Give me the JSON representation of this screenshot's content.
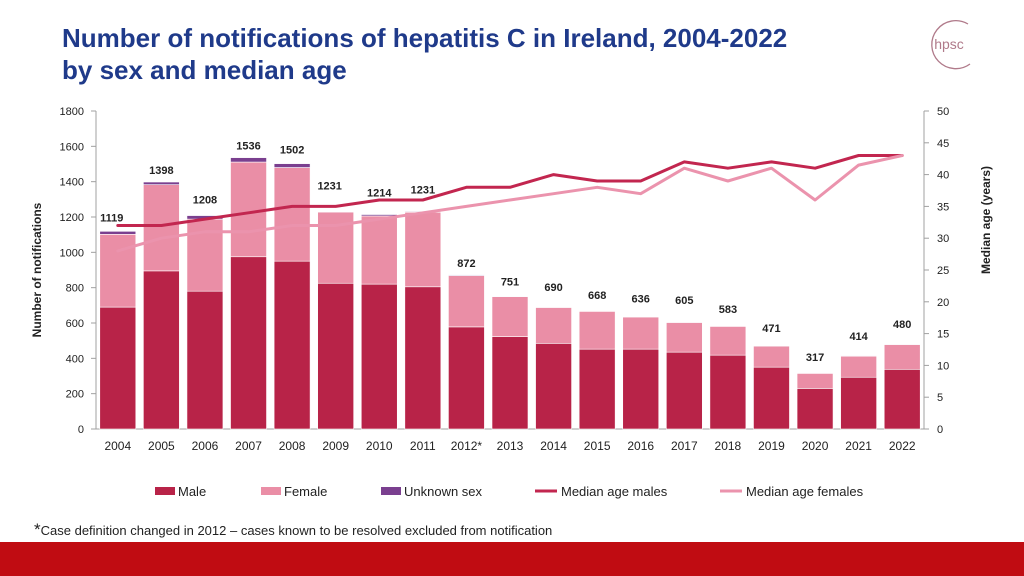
{
  "page": {
    "title_line1": "Number of notifications of hepatitis C in Ireland, 2004-2022",
    "title_line2": "by sex and median age",
    "logo_text": "hpsc",
    "footnote_star": "*",
    "footnote_text": "Case definition changed in 2012 – cases known to be resolved excluded from notification"
  },
  "colors": {
    "title": "#1f3a8a",
    "male": "#b82348",
    "female": "#ea8ea6",
    "unknown": "#7a3f8f",
    "median_male": "#c2264f",
    "median_female": "#eb93ad",
    "brand_red": "#c00c12",
    "logo": "#b07a8a"
  },
  "chart_data": {
    "type": "bar",
    "stacked": true,
    "title": "Number of notifications of hepatitis C in Ireland, 2004-2022 by sex and median age",
    "categories": [
      "2004",
      "2005",
      "2006",
      "2007",
      "2008",
      "2009",
      "2010",
      "2011",
      "2012*",
      "2013",
      "2014",
      "2015",
      "2016",
      "2017",
      "2018",
      "2019",
      "2020",
      "2021",
      "2022"
    ],
    "series": [
      {
        "name": "Male",
        "axis": "left",
        "values": [
          690,
          895,
          780,
          975,
          950,
          825,
          820,
          805,
          578,
          523,
          485,
          452,
          452,
          435,
          418,
          350,
          230,
          293,
          338
        ]
      },
      {
        "name": "Female",
        "axis": "left",
        "values": [
          412,
          488,
          408,
          536,
          530,
          403,
          386,
          422,
          290,
          226,
          203,
          214,
          182,
          168,
          163,
          119,
          85,
          119,
          140
        ]
      },
      {
        "name": "Unknown sex",
        "axis": "left",
        "values": [
          17,
          15,
          20,
          25,
          22,
          3,
          8,
          4,
          4,
          2,
          2,
          2,
          2,
          2,
          2,
          2,
          2,
          2,
          2
        ]
      },
      {
        "name": "Median age males",
        "axis": "right",
        "kind": "line",
        "values": [
          32,
          32,
          33,
          34,
          35,
          35,
          36,
          36,
          38,
          38,
          40,
          39,
          39,
          42,
          41,
          42,
          41,
          43,
          43
        ]
      },
      {
        "name": "Median age females",
        "axis": "right",
        "kind": "line",
        "values": [
          28,
          30,
          31,
          31,
          32,
          32,
          33,
          34,
          35,
          36,
          37,
          38,
          37,
          41,
          39,
          41,
          36,
          41.5,
          43
        ]
      }
    ],
    "totals_labels": [
      "1119",
      "1398",
      "1208",
      "1536",
      "1502",
      "1231",
      "1214",
      "1231",
      "872",
      "751",
      "690",
      "668",
      "636",
      "605",
      "583",
      "471",
      "317",
      "414",
      "480"
    ],
    "xlabel": "",
    "ylabel": "Number of notifications",
    "ylabel_right": "Median age (years)",
    "ylim": [
      0,
      1800
    ],
    "ylim_right": [
      0,
      50
    ],
    "yticks": [
      "0",
      "200",
      "400",
      "600",
      "800",
      "1000",
      "1200",
      "1400",
      "1600",
      "1800"
    ],
    "yticks_right": [
      "0",
      "5",
      "10",
      "15",
      "20",
      "25",
      "30",
      "35",
      "40",
      "45",
      "50"
    ],
    "legend": {
      "position": "bottom",
      "entries": [
        "Male",
        "Female",
        "Unknown sex",
        "Median age males",
        "Median age females"
      ]
    }
  }
}
